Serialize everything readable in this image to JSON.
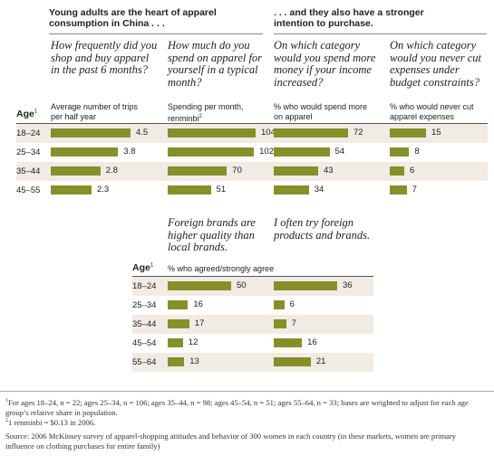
{
  "headers": {
    "left": "Young adults are the heart of apparel consumption in China . . .",
    "right": ". . . and they also have a stronger intention to purchase."
  },
  "top_questions": [
    "How frequently did you shop and buy apparel in the past 6 months?",
    "How much do you spend on apparel for yourself in a typical month?",
    "On which category would you spend more money if your income increased?",
    "On which category would you never cut expenses under budget constraints?"
  ],
  "top_subs": [
    "Average number of trips per half year",
    "Spending per month, renminbi",
    "% who would spend more on apparel",
    "% who would never cut apparel expenses"
  ],
  "spend_sup": "2",
  "age_label": "Age",
  "age_sup": "1",
  "bottom_questions": [
    "Foreign brands are higher quality than local brands.",
    "I often try foreign products and brands."
  ],
  "bottom_sub": "% who agreed/strongly agree",
  "chart_data": [
    {
      "type": "bar",
      "title": "How frequently did you shop and buy apparel in the past 6 months?",
      "ylabel": "Average number of trips per half year",
      "categories": [
        "18–24",
        "25–34",
        "35–44",
        "45–55"
      ],
      "values": [
        4.5,
        3.8,
        2.8,
        2.3
      ],
      "labels": [
        "4.5",
        "3.8",
        "2.8",
        "2.3"
      ],
      "orientation": "horizontal",
      "max": 4.5
    },
    {
      "type": "bar",
      "title": "How much do you spend on apparel for yourself in a typical month?",
      "ylabel": "Spending per month, renminbi",
      "categories": [
        "18–24",
        "25–34",
        "35–44",
        "45–55"
      ],
      "values": [
        104,
        102,
        70,
        51
      ],
      "labels": [
        "104",
        "102",
        "70",
        "51"
      ],
      "orientation": "horizontal",
      "max": 104
    },
    {
      "type": "bar",
      "title": "On which category would you spend more money if your income increased?",
      "ylabel": "% who would spend more on apparel",
      "categories": [
        "18–24",
        "25–34",
        "35–44",
        "45–55"
      ],
      "values": [
        72,
        54,
        43,
        34
      ],
      "labels": [
        "72",
        "54",
        "43",
        "34"
      ],
      "orientation": "horizontal",
      "max": 72
    },
    {
      "type": "bar",
      "title": "On which category would you never cut expenses under budget constraints?",
      "ylabel": "% who would never cut apparel expenses",
      "categories": [
        "18–24",
        "25–34",
        "35–44",
        "45–55"
      ],
      "values": [
        15,
        8,
        6,
        7
      ],
      "labels": [
        "15",
        "8",
        "6",
        "7"
      ],
      "orientation": "horizontal",
      "max": 15
    },
    {
      "type": "bar",
      "title": "Foreign brands are higher quality than local brands.",
      "ylabel": "% who agreed/strongly agree",
      "categories": [
        "18–24",
        "25–34",
        "35–44",
        "45–54",
        "55–64"
      ],
      "values": [
        50,
        16,
        17,
        12,
        13
      ],
      "labels": [
        "50",
        "16",
        "17",
        "12",
        "13"
      ],
      "orientation": "horizontal",
      "max": 50
    },
    {
      "type": "bar",
      "title": "I often try foreign products and brands.",
      "ylabel": "% who agreed/strongly agree",
      "categories": [
        "18–24",
        "25–34",
        "35–44",
        "45–54",
        "55–64"
      ],
      "values": [
        36,
        6,
        7,
        16,
        21
      ],
      "labels": [
        "36",
        "6",
        "7",
        "16",
        "21"
      ],
      "orientation": "horizontal",
      "max": 36
    }
  ],
  "colors": {
    "bar": "#86902a",
    "band": "#f1ebe4",
    "rule": "#888888"
  },
  "footnotes": {
    "f1": "For ages 18–24, n = 22; ages 25–34, n = 106; ages 35–44, n = 98; ages 45–54, n = 51; ages 55–64, n = 33; bases are weighted to adjust for each age group’s relative share in population.",
    "f1_sup": "1",
    "f2": "1 renminbi = $0.13 in 2006.",
    "f2_sup": "2",
    "source": "Source: 2006 McKinsey survey of apparel-shopping attitudes and behavior of 300 women in each country (in these markets, women are primary influence on clothing purchases for entire family)"
  }
}
